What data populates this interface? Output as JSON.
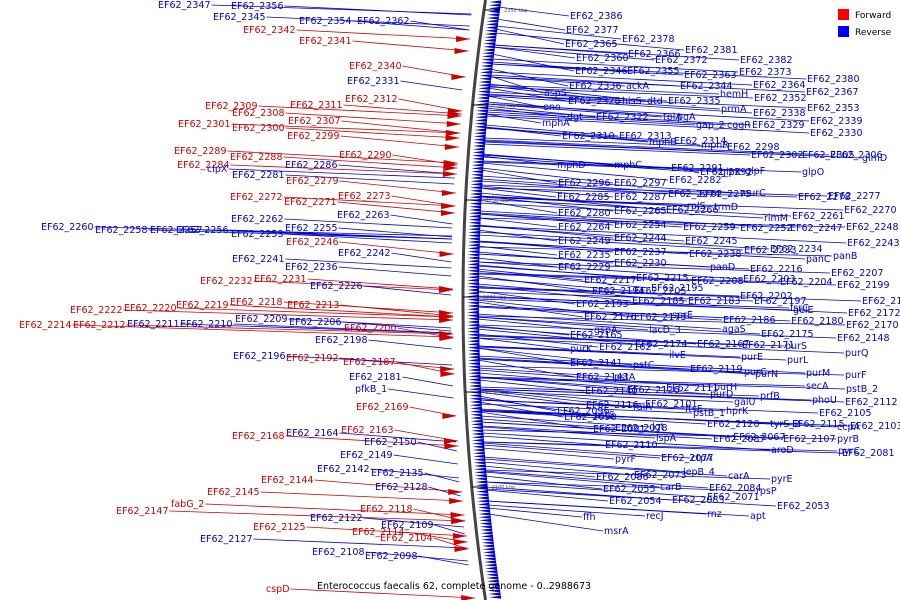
{
  "colors": {
    "forward": "#cc0000",
    "reverse": "#0000cc",
    "backbone": "#444444",
    "legend_forward": "#ff0000",
    "legend_reverse": "#0000ff"
  },
  "legend": {
    "forward": "Forward",
    "reverse": "Reverse"
  },
  "caption": "Enterococcus faecalis 62, complete genome - 0..2988673",
  "scale_ticks": [
    "2350 kbp",
    "2300 kbp",
    "2250 kbp",
    "2200 kbp",
    "2150 kbp",
    "2100 kbp"
  ],
  "forward_labels": [
    "EF62_2342",
    "EF62_2341",
    "EF62_2340",
    "EF62_2312",
    "EF62_2311",
    "EF62_2309",
    "EF62_2308",
    "EF62_2307",
    "EF62_2301",
    "EF62_2300",
    "EF62_2299",
    "EF62_2289",
    "EF62_2284",
    "EF62_2290",
    "EF62_2288",
    "EF62_2279",
    "EF62_2272",
    "EF62_2273",
    "EF62_2271",
    "EF62_2246",
    "EF62_2232",
    "EF62_2231",
    "EF62_2218",
    "EF62_2219",
    "EF62_2220",
    "EF62_2222",
    "EF62_2213",
    "EF62_2214",
    "EF62_2212",
    "EF62_2200",
    "EF62_2192",
    "EF62_2187",
    "EF62_2169",
    "EF62_2168",
    "EF62_2163",
    "EF62_2144",
    "EF62_2145",
    "EF62_2147",
    "fabG_2",
    "EF62_2118",
    "EF62_2125",
    "EF62_2114",
    "EF62_2104",
    "cspD"
  ],
  "reverse_labels": [
    "EF62_2347",
    "EF62_2356",
    "EF62_2345",
    "EF62_2354",
    "EF62_2362",
    "EF62_2331",
    "clpX",
    "EF62_2286",
    "EF62_2281",
    "EF62_2260",
    "EF62_2258",
    "EF62_2257",
    "EF62_2256",
    "EF62_2262",
    "EF62_2263",
    "EF62_2253",
    "EF62_2255",
    "EF62_2241",
    "EF62_2242",
    "EF62_2236",
    "EF62_2226",
    "EF62_2209",
    "EF62_2211",
    "EF62_2210",
    "EF62_2206",
    "EF62_2198",
    "EF62_2196",
    "EF62_2181",
    "pfkB_1",
    "EF62_2164",
    "EF62_2150",
    "EF62_2149",
    "EF62_2142",
    "EF62_2135",
    "EF62_2128",
    "EF62_2127",
    "EF62_2122",
    "EF62_2109",
    "EF62_2108",
    "EF62_2098",
    "EF62_2386",
    "EF62_2377",
    "EF62_2378",
    "EF62_2365",
    "EF62_2381",
    "EF62_2366",
    "EF62_2360",
    "EF62_2372",
    "EF62_2382",
    "EF62_2346",
    "EF62_2355",
    "EF62_2363",
    "EF62_2373",
    "EF62_2380",
    "EF62_2336",
    "ackA",
    "EF62_2344",
    "EF62_2364",
    "EF62_2367",
    "aspS",
    "hemH",
    "EF62_2352",
    "EF62_2328",
    "hisS",
    "dtd",
    "EF62_2335",
    "eno",
    "EF62_2353",
    "prmA",
    "EF62_2338",
    "dgt",
    "EF62_2322",
    "tpiA",
    "pgA",
    "EF62_2339",
    "mphA",
    "gap_2",
    "cggR",
    "EF62_2329",
    "EF62_2330",
    "EF62_2310",
    "EF62_2313",
    "EF62_2314",
    "mphB",
    "mphR",
    "EF62_2298",
    "EF62_2302",
    "EF62_2305",
    "EF62_2306",
    "glmD",
    "mphD",
    "mphC",
    "EF62_2291",
    "EF62_2292",
    "glpK",
    "glpF",
    "glpO",
    "EF62_2296",
    "EF62_2297",
    "EF62_2282",
    "EF62_2285",
    "EF62_2287",
    "EF62_2274",
    "EF62_2275",
    "murC",
    "EF62_2278",
    "EF62_2277",
    "EF62_2280",
    "EF62_2265",
    "EF62_2266",
    "rplS",
    "trmD",
    "EF62_2270",
    "rimM",
    "EF62_2261",
    "EF62_2264",
    "EF62_2254",
    "EF62_2259",
    "EF62_2252",
    "EF62_2247",
    "EF62_2248",
    "EF62_2249",
    "EF62_2244",
    "EF62_2245",
    "EF62_2243",
    "EF62_2235",
    "EF62_2237",
    "EF62_2238",
    "EF62_2233",
    "EF62_2234",
    "EF62_2229",
    "EF62_2230",
    "panD",
    "EF62_2216",
    "panC",
    "panB",
    "EF62_2217",
    "EF62_2215",
    "EF62_2208",
    "EF62_2203",
    "EF62_2204",
    "EF62_2207",
    "EF62_2205",
    "EF62_2194",
    "EF62_2195",
    "EF62_2202",
    "EF62_2199",
    "EF62_2193",
    "EF62_2185",
    "EF62_2183",
    "EF62_2197",
    "fsrC",
    "EF62_2184",
    "EF62_2176",
    "EF62_2173",
    "sprE",
    "gelE",
    "EF62_2186",
    "EF62_2180",
    "EF62_2172",
    "EF62_2165",
    "gspA",
    "lacD_3",
    "agaS",
    "EF62_2175",
    "EF62_2170",
    "purK",
    "EF62_2162",
    "EF62_2174",
    "EF62_2167",
    "EF62_2171",
    "purS",
    "EF62_2148",
    "EF62_2141",
    "pstC",
    "ilvE",
    "purE",
    "purL",
    "purQ",
    "EF62_2143",
    "pstA",
    "EF62_2119",
    "purC",
    "purN",
    "purM",
    "purF",
    "EF62_2140",
    "EF62_2126",
    "EF62_2111",
    "purH",
    "secA",
    "pstB_2",
    "EF62_2116",
    "EF62_2101",
    "purD",
    "prfB",
    "phoU",
    "EF62_2112",
    "EF62_2096",
    "raiA",
    "ftsE",
    "galU",
    "EF62_2105",
    "EF62_2090",
    "pstS",
    "pstB_1",
    "hprK",
    "EF62_2115",
    "EF62_2103",
    "EF62_2091",
    "EF62_2078",
    "lgt",
    "EF62_2120",
    "tyrS_2",
    "ccpA",
    "EF62_2110",
    "lspA",
    "EF62_2087",
    "EF62_2067",
    "EF62_2107",
    "pyrB",
    "pyrF",
    "EF62_2077",
    "ctpA",
    "aroD",
    "pyrC",
    "EF62_2086",
    "EF62_2073",
    "lepB_4",
    "carA",
    "pyrE",
    "EF62_2081",
    "EF62_2055",
    "carB",
    "EF62_2084",
    "rpsP",
    "EF62_2054",
    "EF62_2083",
    "EF62_2071",
    "EF62_2053",
    "ffh",
    "recJ",
    "rnz",
    "apt",
    "msrA"
  ]
}
